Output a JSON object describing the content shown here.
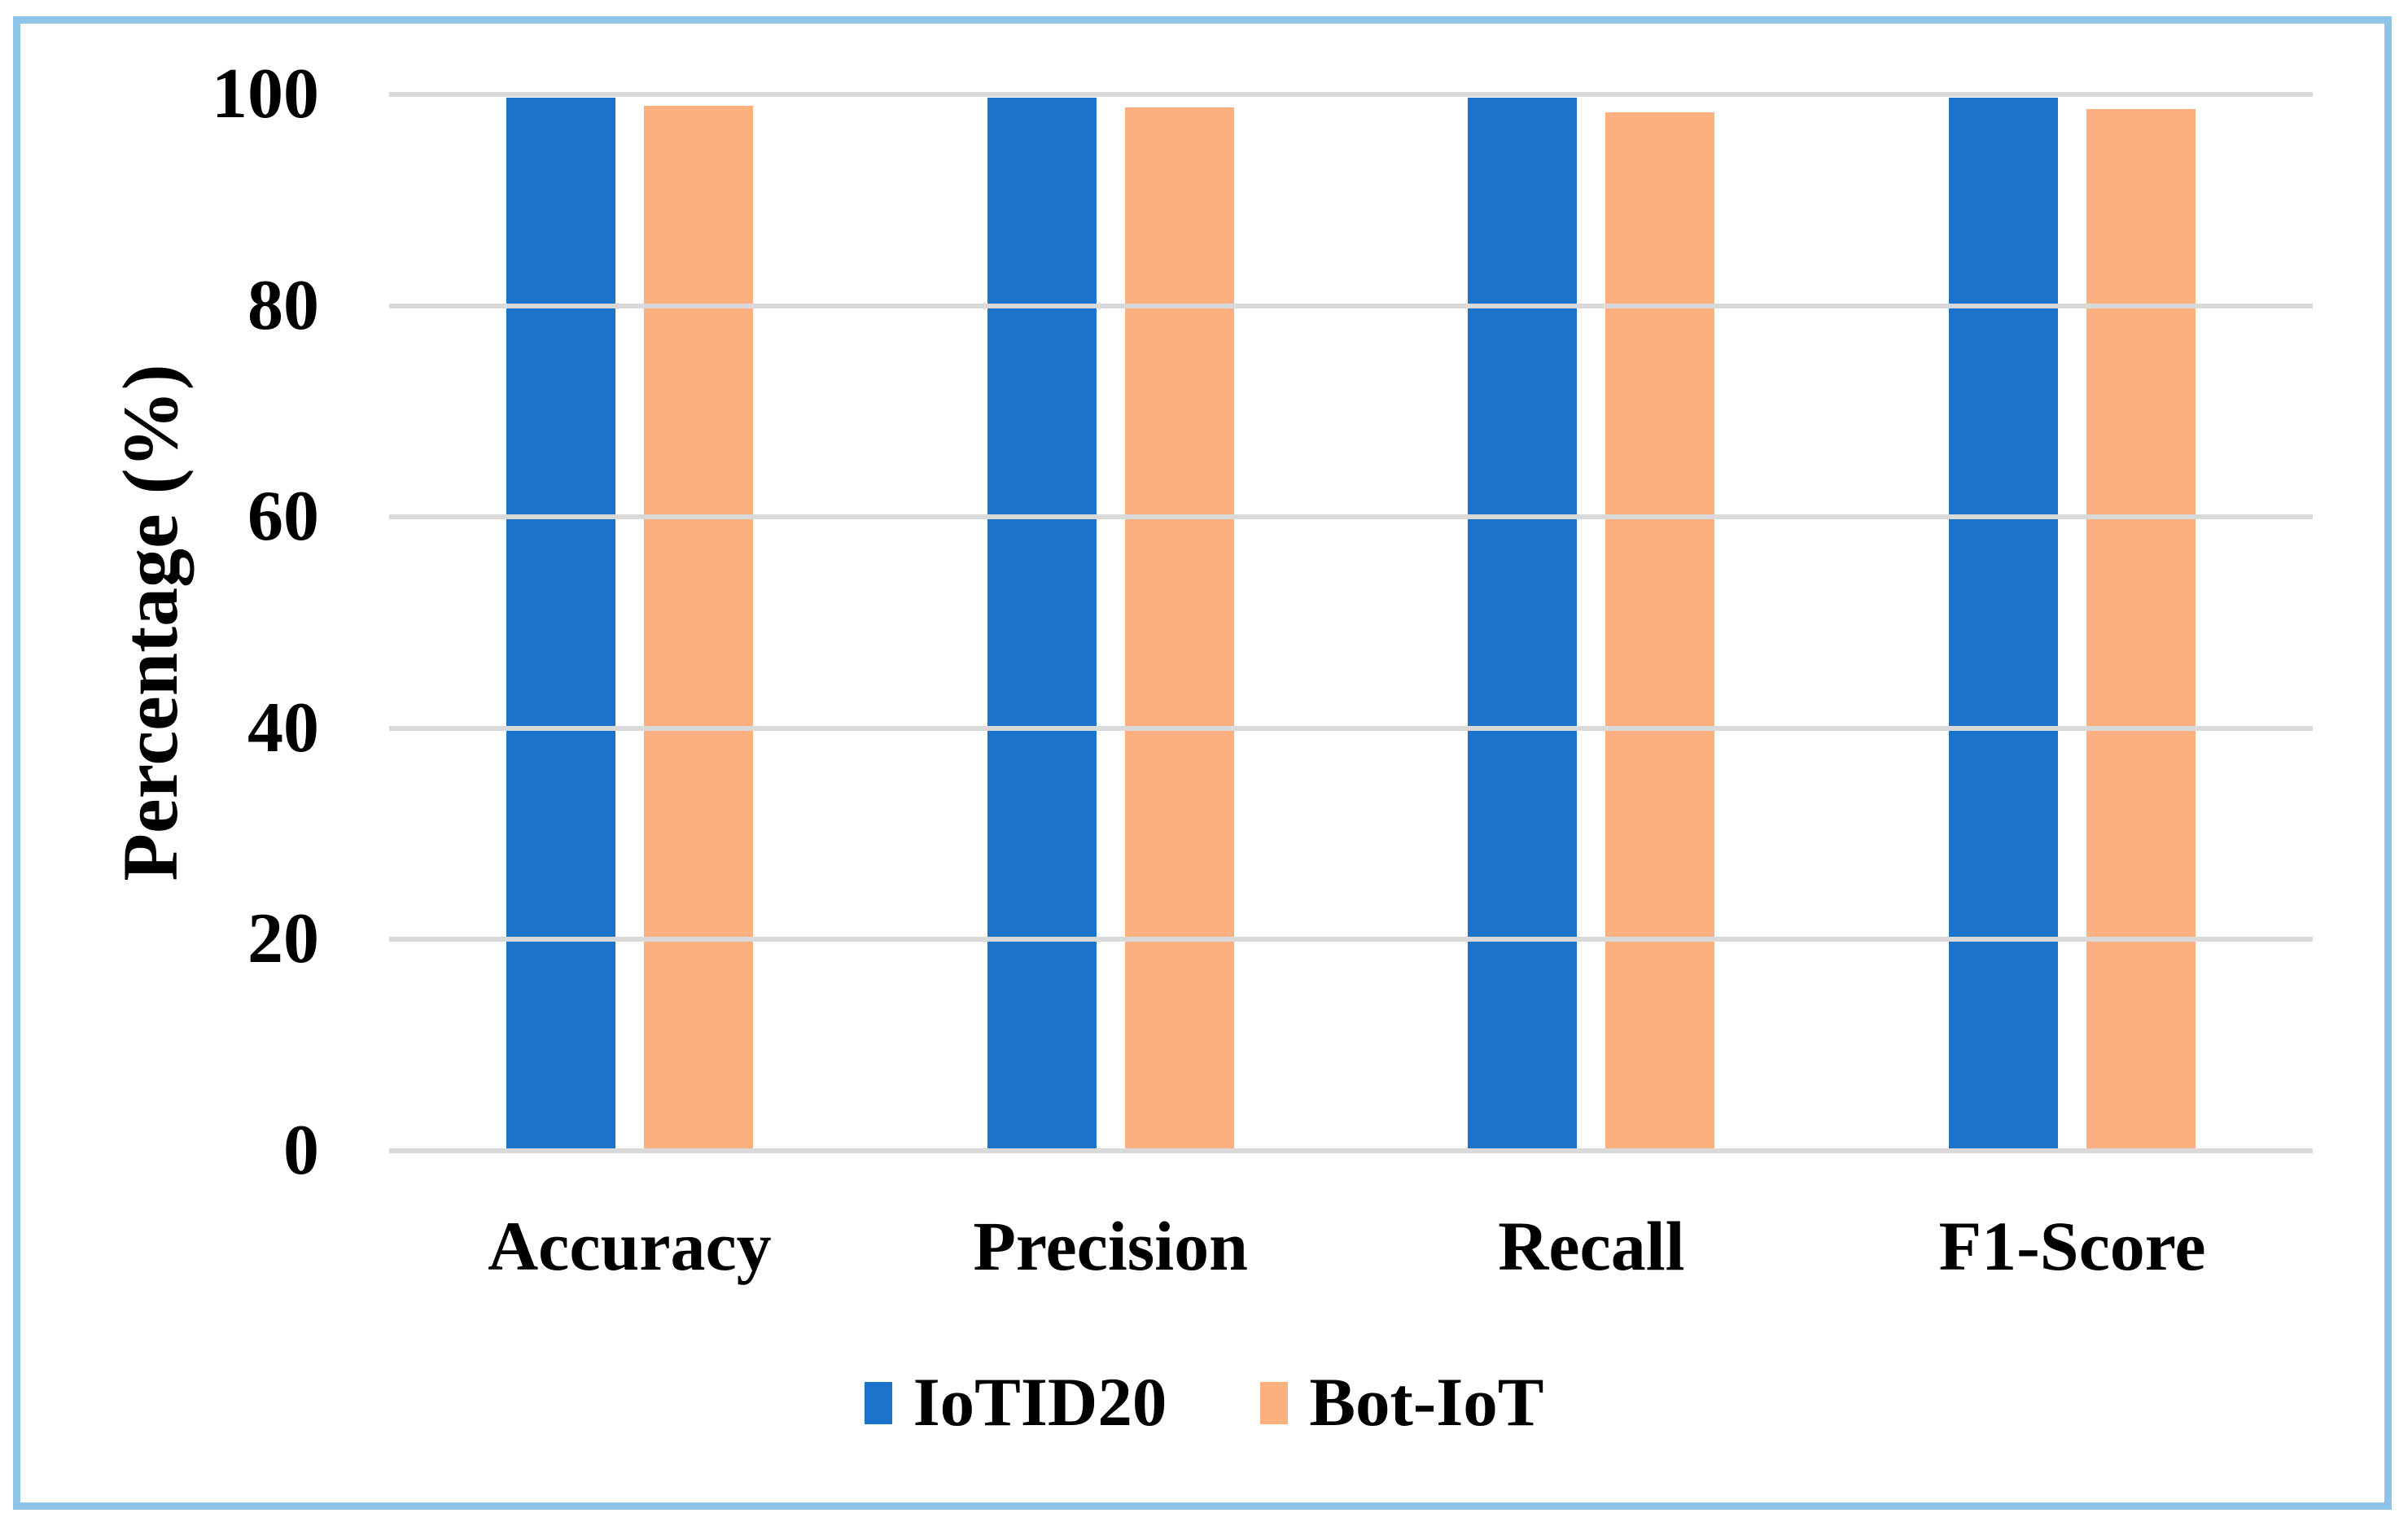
{
  "figure": {
    "background": "#FFFFFF",
    "border_color": "#8EC4E8",
    "grid_color": "#D9D9D9",
    "text_color": "#000000"
  },
  "chart_data": {
    "type": "bar",
    "categories": [
      "Accuracy",
      "Precision",
      "Recall",
      "F1-Score"
    ],
    "series": [
      {
        "name": "IoTID20",
        "color": "#1B74C9",
        "values": [
          99.7,
          99.7,
          99.7,
          99.7
        ]
      },
      {
        "name": "Bot-IoT",
        "color": "#FCB080",
        "values": [
          98.9,
          98.8,
          98.3,
          98.6
        ]
      }
    ],
    "title": "",
    "xlabel": "",
    "ylabel": "Percentage (%)",
    "y_ticks": [
      0,
      20,
      40,
      60,
      80,
      100
    ],
    "ylim": [
      0,
      100
    ],
    "grid": true,
    "legend_position": "bottom"
  }
}
